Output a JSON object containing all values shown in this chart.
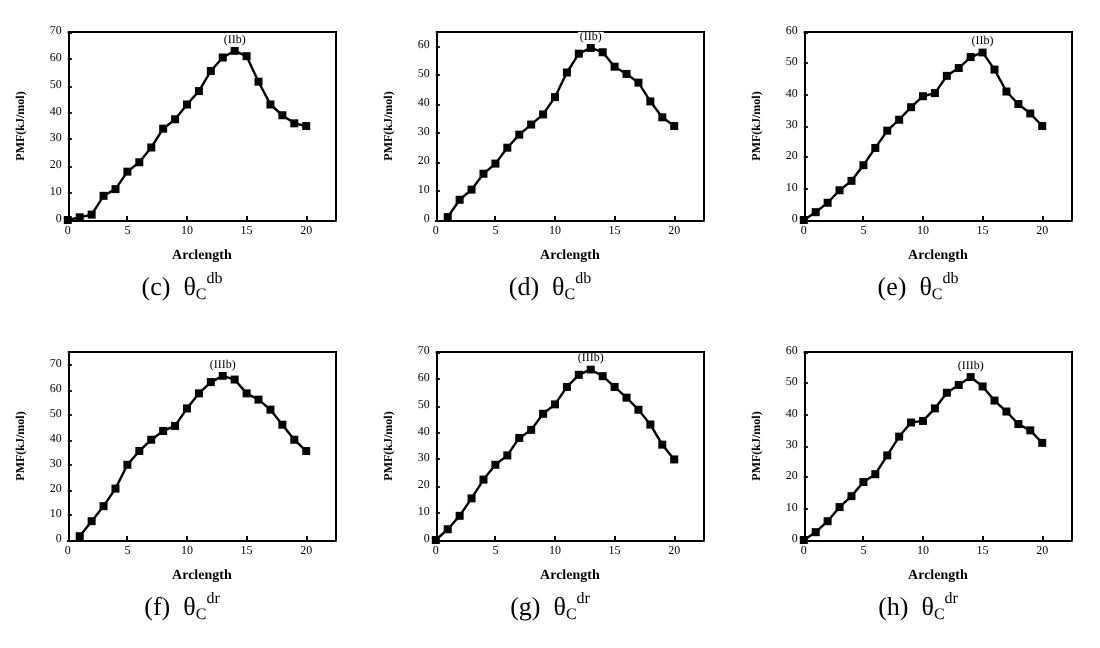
{
  "chart_data": [
    {
      "type": "line",
      "title": "(c)  θ$_{C}$$^{db}$",
      "xlabel": "Arclength",
      "ylabel": "PMF(kJ/mol)",
      "marker": "square",
      "grid": false,
      "xlim": [
        0,
        22.5
      ],
      "xticks": [
        0,
        5,
        10,
        15,
        20
      ],
      "ylim": [
        0,
        70
      ],
      "yticks": [
        0,
        10,
        20,
        30,
        40,
        50,
        60,
        70
      ],
      "annotations": [
        {
          "text": "(IIb)",
          "x": 14,
          "y": 63
        }
      ],
      "x": [
        0,
        1,
        2,
        3,
        4,
        5,
        6,
        7,
        8,
        9,
        10,
        11,
        12,
        13,
        14,
        15,
        16,
        17,
        18,
        19,
        20
      ],
      "series": [
        {
          "color": "#000000",
          "values": [
            0,
            1,
            2,
            9,
            11.5,
            18,
            21.5,
            27,
            34,
            37.5,
            43,
            48,
            55.5,
            60.5,
            63,
            61,
            51.5,
            43,
            39,
            36,
            35
          ]
        }
      ]
    },
    {
      "type": "line",
      "title": "(d)  θ$_{C}$$^{db}$",
      "xlabel": "Arclength",
      "ylabel": "PMF(kJ/mol)",
      "marker": "square",
      "grid": false,
      "xlim": [
        0,
        22.5
      ],
      "xticks": [
        0,
        5,
        10,
        15,
        20
      ],
      "ylim": [
        0,
        65
      ],
      "yticks": [
        0,
        10,
        20,
        30,
        40,
        50,
        60
      ],
      "annotations": [
        {
          "text": "(IIb)",
          "x": 13,
          "y": 59.5
        }
      ],
      "x": [
        1,
        2,
        3,
        4,
        5,
        6,
        7,
        8,
        9,
        10,
        11,
        12,
        13,
        14,
        15,
        16,
        17,
        18,
        19,
        20
      ],
      "series": [
        {
          "color": "#000000",
          "values": [
            1,
            7,
            10.5,
            16,
            19.5,
            25,
            29.5,
            33,
            36.5,
            42.5,
            51,
            57.5,
            59.5,
            58,
            53,
            50.5,
            47.5,
            41,
            35.5,
            32.5
          ]
        }
      ]
    },
    {
      "type": "line",
      "title": "(e)  θ$_{C}$$^{db}$",
      "xlabel": "Arclength",
      "ylabel": "PMF(kJ/mol)",
      "marker": "square",
      "grid": false,
      "xlim": [
        0,
        22.5
      ],
      "xticks": [
        0,
        5,
        10,
        15,
        20
      ],
      "ylim": [
        0,
        60
      ],
      "yticks": [
        0,
        10,
        20,
        30,
        40,
        50,
        60
      ],
      "annotations": [
        {
          "text": "(IIb)",
          "x": 15,
          "y": 53.5
        }
      ],
      "x": [
        0,
        1,
        2,
        3,
        4,
        5,
        6,
        7,
        8,
        9,
        10,
        11,
        12,
        13,
        14,
        15,
        16,
        17,
        18,
        19,
        20
      ],
      "series": [
        {
          "color": "#000000",
          "values": [
            0,
            2.5,
            5.5,
            9.5,
            12.5,
            17.5,
            23,
            28.5,
            32,
            36,
            39.5,
            40.5,
            46,
            48.5,
            52,
            53.5,
            48,
            41,
            37,
            34,
            30
          ]
        }
      ]
    },
    {
      "type": "line",
      "title": "(f)  θ$_{C}$$^{dr}$",
      "xlabel": "Arclength",
      "ylabel": "PMF(kJ/mol)",
      "marker": "square",
      "grid": false,
      "xlim": [
        0,
        22.5
      ],
      "xticks": [
        0,
        5,
        10,
        15,
        20
      ],
      "ylim": [
        0,
        75
      ],
      "yticks": [
        0,
        10,
        20,
        30,
        40,
        50,
        60,
        70
      ],
      "annotations": [
        {
          "text": "(IIIb)",
          "x": 13,
          "y": 65.5
        }
      ],
      "x": [
        1,
        2,
        3,
        4,
        5,
        6,
        7,
        8,
        9,
        10,
        11,
        12,
        13,
        14,
        15,
        16,
        17,
        18,
        19,
        20
      ],
      "series": [
        {
          "color": "#000000",
          "values": [
            1.5,
            7.5,
            13.5,
            20.5,
            30,
            35.5,
            40,
            43.5,
            45.5,
            52.5,
            58.5,
            63,
            65.5,
            64,
            58.5,
            56,
            52,
            46,
            40,
            35.5
          ]
        }
      ]
    },
    {
      "type": "line",
      "title": "(g)  θ$_{C}$$^{dr}$",
      "xlabel": "Arclength",
      "ylabel": "PMF(kJ/mol)",
      "marker": "square",
      "grid": false,
      "xlim": [
        0,
        22.5
      ],
      "xticks": [
        0,
        5,
        10,
        15,
        20
      ],
      "ylim": [
        0,
        70
      ],
      "yticks": [
        0,
        10,
        20,
        30,
        40,
        50,
        60,
        70
      ],
      "annotations": [
        {
          "text": "(IIIb)",
          "x": 13,
          "y": 63.5
        }
      ],
      "x": [
        0,
        1,
        2,
        3,
        4,
        5,
        6,
        7,
        8,
        9,
        10,
        11,
        12,
        13,
        14,
        15,
        16,
        17,
        18,
        19,
        20
      ],
      "series": [
        {
          "color": "#000000",
          "values": [
            0,
            4,
            9,
            15.5,
            22.5,
            28,
            31.5,
            38,
            41,
            47,
            50.5,
            57,
            61.5,
            63.5,
            61,
            57,
            53,
            48.5,
            43,
            35.5,
            30
          ]
        }
      ]
    },
    {
      "type": "line",
      "title": "(h)  θ$_{C}$$^{dr}$",
      "xlabel": "Arclength",
      "ylabel": "PMF(kJ/mol)",
      "marker": "square",
      "grid": false,
      "xlim": [
        0,
        22.5
      ],
      "xticks": [
        0,
        5,
        10,
        15,
        20
      ],
      "ylim": [
        0,
        60
      ],
      "yticks": [
        0,
        10,
        20,
        30,
        40,
        50,
        60
      ],
      "annotations": [
        {
          "text": "(IIIb)",
          "x": 14,
          "y": 52
        }
      ],
      "x": [
        0,
        1,
        2,
        3,
        4,
        5,
        6,
        7,
        8,
        9,
        10,
        11,
        12,
        13,
        14,
        15,
        16,
        17,
        18,
        19,
        20
      ],
      "series": [
        {
          "color": "#000000",
          "values": [
            0,
            2.5,
            6,
            10.5,
            14,
            18.5,
            21,
            27,
            33,
            37.5,
            38,
            42,
            47,
            49.5,
            52,
            49,
            44.5,
            41,
            37,
            35,
            31
          ]
        }
      ]
    }
  ]
}
